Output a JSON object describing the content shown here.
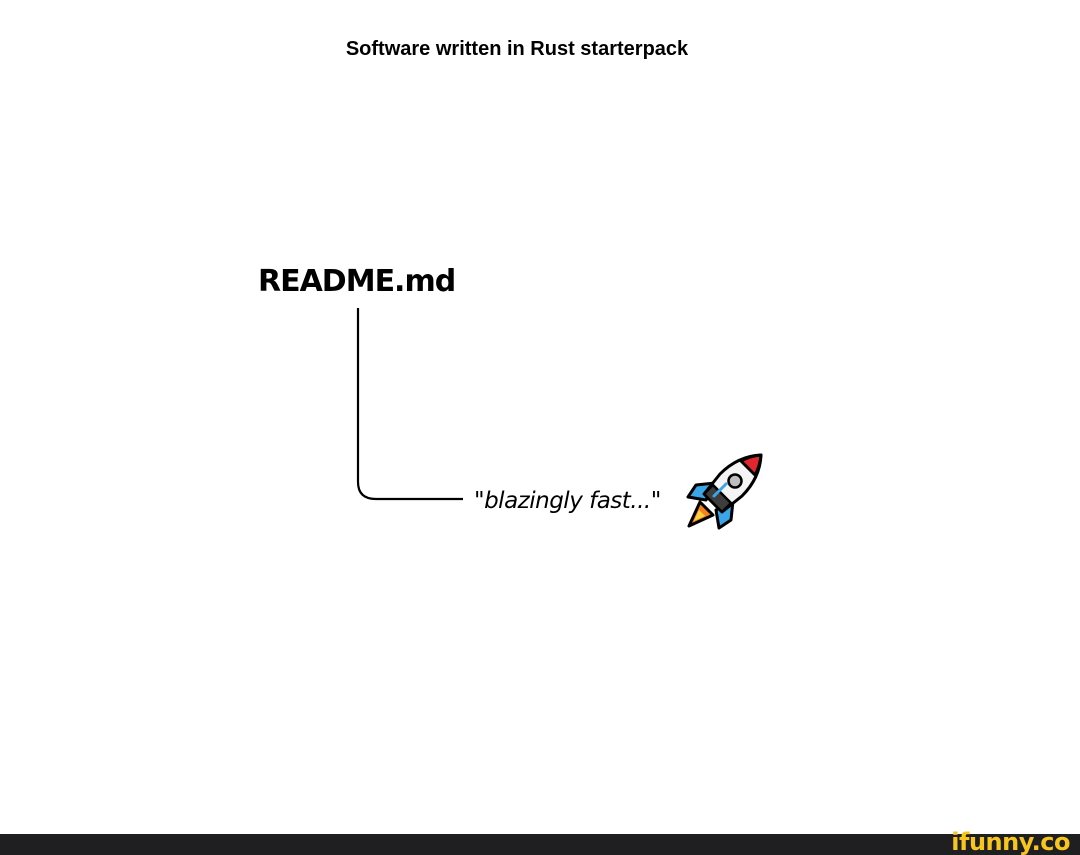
{
  "header": {
    "title": "Software written in Rust starterpack"
  },
  "diagram": {
    "file_label": "README.md",
    "quote_text": "\"blazingly fast...\"",
    "rocket_icon": "rocket-icon"
  },
  "footer": {
    "watermark": "ifunny.co",
    "bar_color": "#1f1f22",
    "watermark_color": "#f7c51e"
  }
}
